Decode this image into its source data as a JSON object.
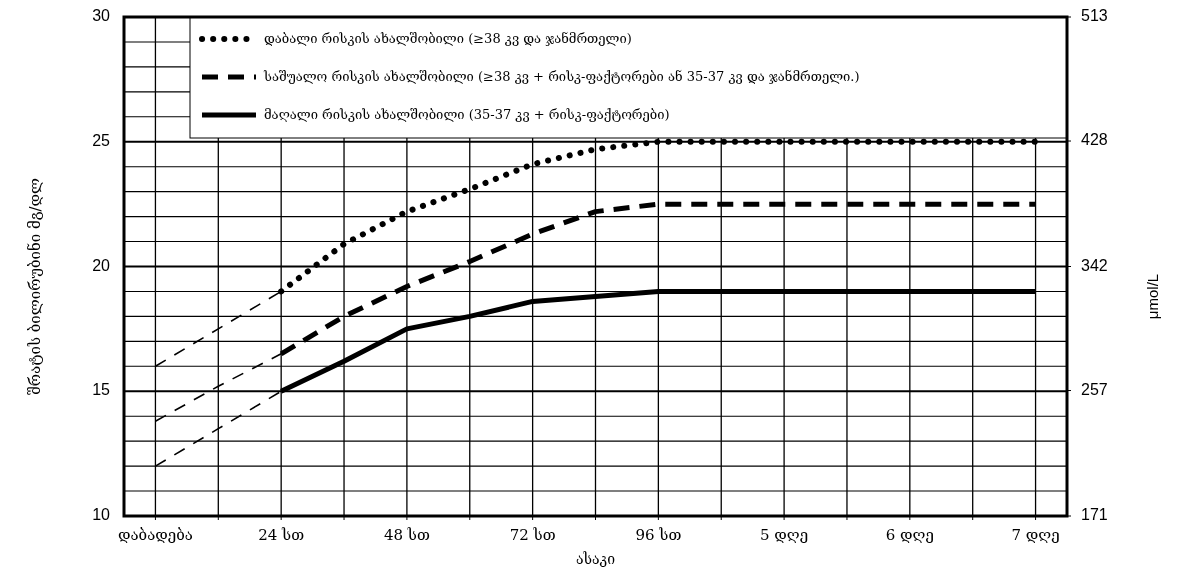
{
  "chart_data": {
    "type": "line",
    "xlabel": "ასაკი",
    "ylabel": "შრატის ბილირუბინი მგ/დლ",
    "y2label": "μmol/L",
    "categories": [
      "დაბადება",
      null,
      "24 სთ",
      null,
      "48 სთ",
      null,
      "72 სთ",
      null,
      "96 სთ",
      null,
      "5 დღე",
      null,
      "6 დღე",
      null,
      "7 დღე"
    ],
    "ylim": [
      10,
      30
    ],
    "y2lim": [
      171,
      513
    ],
    "yticks": [
      10,
      {
        "value": 11,
        "label": null
      },
      {
        "value": 12,
        "label": null
      },
      {
        "value": 13,
        "label": null
      },
      {
        "value": 14,
        "label": null
      },
      15,
      {
        "value": 16,
        "label": null
      },
      {
        "value": 17,
        "label": null
      },
      {
        "value": 18,
        "label": null
      },
      {
        "value": 19,
        "label": null
      },
      20,
      {
        "value": 21,
        "label": null
      },
      {
        "value": 22,
        "label": null
      },
      {
        "value": 23,
        "label": null
      },
      {
        "value": 24,
        "label": null
      },
      25,
      {
        "value": 26,
        "label": null
      },
      {
        "value": 27,
        "label": null
      },
      {
        "value": 28,
        "label": null
      },
      {
        "value": 29,
        "label": null
      },
      30
    ],
    "y2ticks": [
      171,
      257,
      342,
      428,
      513
    ],
    "grid": true,
    "legend": "top",
    "marker": "none",
    "series": [
      {
        "name": "დაბალი რისკის ახალშობილი (≥38 კვ და ჯანმრთელი)",
        "color": "#000000",
        "line_style": "dotted",
        "values": [
          null,
          null,
          19,
          20.9,
          22.2,
          23.1,
          24.1,
          24.7,
          25,
          25,
          25,
          25,
          25,
          25,
          25
        ]
      },
      {
        "name": "საშუალო რისკის ახალშობილი (≥38 კვ + რისკ-ფაქტორები ან 35-37 კვ და ჯანმრთელი.)",
        "color": "#000000",
        "line_style": "dashed",
        "values": [
          null,
          null,
          16.5,
          18,
          19.2,
          20.2,
          21.3,
          22.2,
          22.5,
          22.5,
          22.5,
          22.5,
          22.5,
          22.5,
          22.5
        ]
      },
      {
        "name": "მაღალი რისკის ახალშობილი (35-37 კვ + რისკ-ფაქტორები)",
        "color": "#000000",
        "line_style": "solid",
        "values": [
          null,
          null,
          15,
          16.2,
          17.5,
          18,
          18.6,
          18.8,
          19,
          19,
          19,
          19,
          19,
          19,
          19
        ]
      },
      {
        "color": "#000000",
        "line_style": "dashed",
        "values": [
          16,
          17.5,
          19,
          null,
          null,
          null,
          null,
          null,
          null,
          null,
          null,
          null,
          null,
          null,
          null
        ]
      },
      {
        "color": "#000000",
        "line_style": "dashed",
        "values": [
          13.8,
          15.2,
          16.5,
          null,
          null,
          null,
          null,
          null,
          null,
          null,
          null,
          null,
          null,
          null,
          null
        ]
      },
      {
        "color": "#000000",
        "line_style": "dashed",
        "values": [
          12,
          13.5,
          15,
          null,
          null,
          null,
          null,
          null,
          null,
          null,
          null,
          null,
          null,
          null,
          null
        ]
      }
    ]
  }
}
